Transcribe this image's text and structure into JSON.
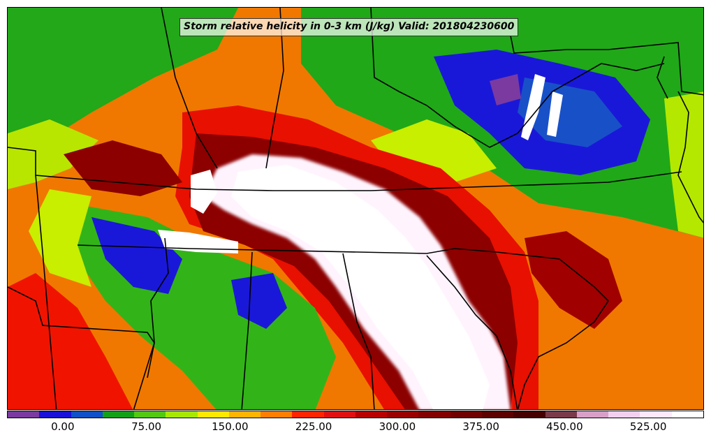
{
  "title": "Storm relative helicity in 0-3 km (J/kg) Valid: 201804230600",
  "colorbar": {
    "min": -50,
    "max": 575,
    "colors": [
      "#7a3aa0",
      "#1a10d8",
      "#1050c8",
      "#12a018",
      "#52c810",
      "#a8e800",
      "#ffe800",
      "#ffb400",
      "#ff7e00",
      "#ff2400",
      "#e01010",
      "#b80000",
      "#9a0000",
      "#840000",
      "#700000",
      "#5c0000",
      "#450000",
      "#7a3a4a",
      "#d8a0c8",
      "#f2d0ee",
      "#ffe8fc",
      "#ffffff"
    ],
    "ticks": [
      {
        "value": 0,
        "label": "0.00"
      },
      {
        "value": 75,
        "label": "75.00"
      },
      {
        "value": 150,
        "label": "150.00"
      },
      {
        "value": 225,
        "label": "225.00"
      },
      {
        "value": 300,
        "label": "300.00"
      },
      {
        "value": 375,
        "label": "375.00"
      },
      {
        "value": 450,
        "label": "450.00"
      },
      {
        "value": 525,
        "label": "525.00"
      }
    ]
  }
}
